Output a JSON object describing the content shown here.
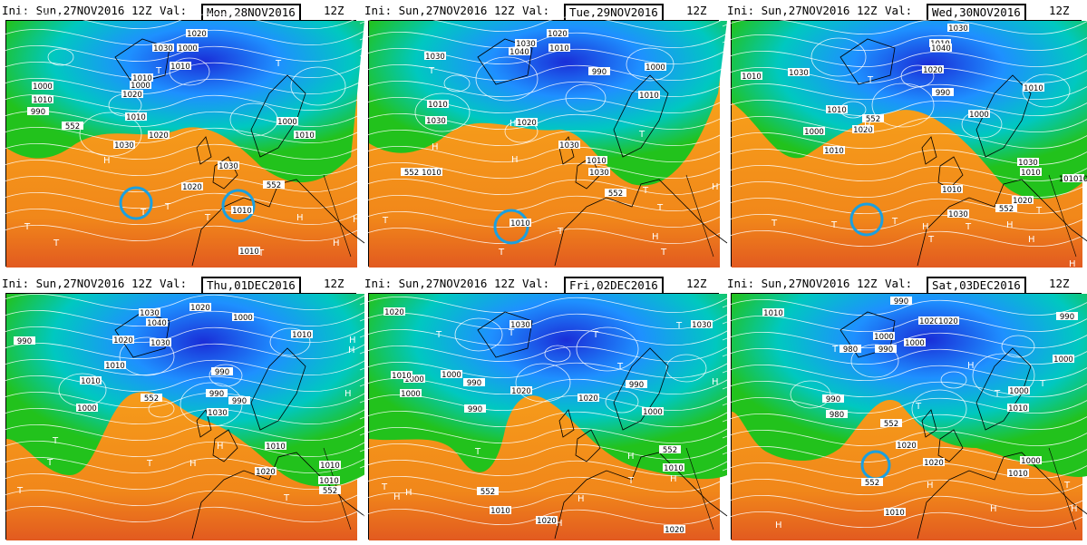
{
  "panels": [
    {
      "ini": "Ini: Sun,27NOV2016 12Z",
      "val": "Val:",
      "date": "Mon,28NOV2016",
      "run": "12Z",
      "labels": [
        "1020",
        "1030",
        "1000",
        "1010",
        "1010",
        "1020",
        "1010",
        "1000",
        "990",
        "1000",
        "1010",
        "552",
        "1020",
        "1030",
        "1000",
        "1010",
        "1030",
        "1020",
        "552",
        "1010",
        "1010"
      ],
      "highs_lows": [
        "T",
        "T",
        "T",
        "T",
        "H",
        "H",
        "T",
        "T",
        "H",
        "T",
        "T",
        "H"
      ]
    },
    {
      "ini": "Ini: Sun,27NOV2016 12Z",
      "val": "Val:",
      "date": "Tue,29NOV2016",
      "run": "12Z",
      "labels": [
        "1020",
        "1030",
        "1010",
        "1040",
        "1030",
        "990",
        "1000",
        "1010",
        "1030",
        "1010",
        "1020",
        "1030",
        "552",
        "1010",
        "1030",
        "1010",
        "552",
        "1010"
      ],
      "highs_lows": [
        "T",
        "H",
        "H",
        "H",
        "T",
        "T",
        "T",
        "T",
        "T",
        "H",
        "T",
        "T",
        "H"
      ]
    },
    {
      "ini": "Ini: Sun,27NOV2016 12Z",
      "val": "Val:",
      "date": "Wed,30NOV2016",
      "run": "12Z",
      "labels": [
        "1030",
        "1010",
        "1040",
        "1030",
        "1020",
        "1010",
        "990",
        "1000",
        "1010",
        "552",
        "1020",
        "1010",
        "1000",
        "1010",
        "1030",
        "1010",
        "552",
        "1020",
        "1010",
        "1030",
        "101010"
      ],
      "highs_lows": [
        "T",
        "H",
        "T",
        "T",
        "T",
        "H",
        "T",
        "H",
        "H",
        "T",
        "T",
        "H"
      ]
    },
    {
      "ini": "Ini: Sun,27NOV2016 12Z",
      "val": "Val:",
      "date": "Thu,01DEC2016",
      "run": "12Z",
      "labels": [
        "1020",
        "1030",
        "1040",
        "990",
        "1020",
        "1030",
        "1000",
        "990",
        "1010",
        "1010",
        "1000",
        "552",
        "990",
        "990",
        "1010",
        "1030",
        "1010",
        "1010",
        "1020",
        "1010",
        "552"
      ],
      "highs_lows": [
        "T",
        "T",
        "H",
        "H",
        "T",
        "T",
        "H",
        "H",
        "T",
        "H"
      ]
    },
    {
      "ini": "Ini: Sun,27NOV2016 12Z",
      "val": "Val:",
      "date": "Fri,02DEC2016",
      "run": "12Z",
      "labels": [
        "1020",
        "1030",
        "1030",
        "1000",
        "1000",
        "1000",
        "990",
        "990",
        "1010",
        "990",
        "1020",
        "1000",
        "1020",
        "1010",
        "552",
        "552",
        "1010",
        "1020",
        "1020"
      ],
      "highs_lows": [
        "H",
        "T",
        "T",
        "T",
        "T",
        "T",
        "H",
        "T",
        "H",
        "H",
        "H",
        "H",
        "T",
        "H",
        "T"
      ]
    },
    {
      "ini": "Ini: Sun,27NOV2016 12Z",
      "val": "Val:",
      "date": "Sat,03DEC2016",
      "run": "12Z",
      "labels": [
        "990",
        "1010",
        "1020",
        "990",
        "1000",
        "980",
        "990",
        "1000",
        "990",
        "1020",
        "980",
        "1000",
        "1010",
        "1020",
        "1000",
        "1010",
        "552",
        "1020",
        "552",
        "1010",
        "1000"
      ],
      "highs_lows": [
        "T",
        "T",
        "H",
        "T",
        "T",
        "H",
        "T",
        "H",
        "H",
        "H"
      ]
    }
  ]
}
